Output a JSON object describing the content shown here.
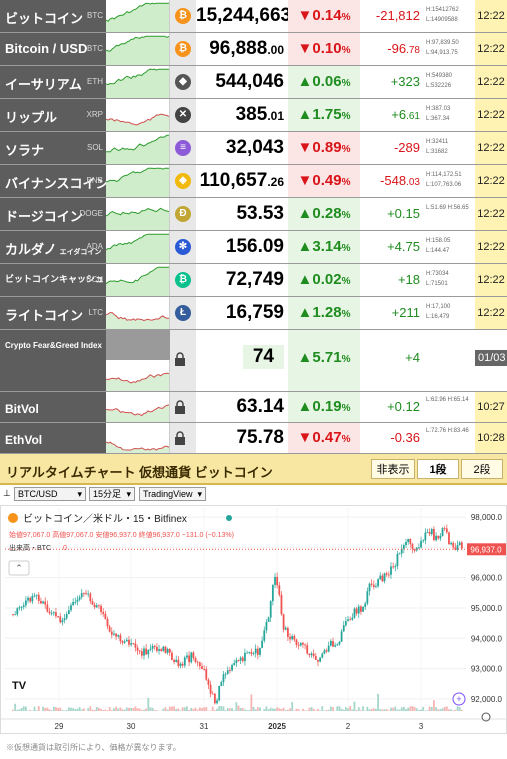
{
  "rows": [
    {
      "name": "ビットコイン",
      "ticker": "BTC",
      "icon": "bitcoin-icon",
      "icon_char": "₿",
      "icon_color": "#f7931a",
      "price": "15,244,663",
      "price_dec": "",
      "dir": "down",
      "pct": "0.14",
      "pct_unit": "%",
      "chg": "-21,812",
      "chg_dec": "",
      "hl": [
        "H:15412762",
        "L:14909588"
      ],
      "time": "12:22",
      "spark": "up"
    },
    {
      "name": "Bitcoin / USD",
      "ticker": "BTC",
      "icon": "bitcoin-icon",
      "icon_char": "₿",
      "icon_color": "#f7931a",
      "price": "96,888",
      "price_dec": ".00",
      "dir": "down",
      "pct": "0.10",
      "pct_unit": "%",
      "chg": "-96",
      "chg_dec": ".78",
      "hl": [
        "H:97,839.50",
        "L:94,913.75"
      ],
      "time": "12:22",
      "spark": "up"
    },
    {
      "name": "イーサリアム",
      "ticker": "ETH",
      "icon": "ethereum-icon",
      "icon_char": "◆",
      "icon_color": "#555555",
      "price": "544,046",
      "price_dec": "",
      "dir": "up",
      "pct": "0.06",
      "pct_unit": "%",
      "chg": "+323",
      "chg_dec": "",
      "hl": [
        "H:549380",
        "L:532226"
      ],
      "time": "12:22",
      "spark": "up"
    },
    {
      "name": "リップル",
      "ticker": "XRP",
      "icon": "xrp-icon",
      "icon_char": "✕",
      "icon_color": "#444444",
      "price": "385",
      "price_dec": ".01",
      "dir": "up",
      "pct": "1.75",
      "pct_unit": "%",
      "chg": "+6",
      "chg_dec": ".61",
      "hl": [
        "H:387.03",
        "L:367.34"
      ],
      "time": "12:22",
      "spark": "mix"
    },
    {
      "name": "ソラナ",
      "ticker": "SOL",
      "icon": "solana-icon",
      "icon_char": "≡",
      "icon_color": "#8e5bd8",
      "price": "32,043",
      "price_dec": "",
      "dir": "down",
      "pct": "0.89",
      "pct_unit": "%",
      "chg": "-289",
      "chg_dec": "",
      "hl": [
        "H:32411",
        "L:31682"
      ],
      "time": "12:22",
      "spark": "up"
    },
    {
      "name": "バイナンスコイン",
      "ticker": "BNB",
      "icon": "bnb-icon",
      "icon_char": "◈",
      "icon_color": "#f0b90b",
      "price": "110,657",
      "price_dec": ".26",
      "dir": "down",
      "pct": "0.49",
      "pct_unit": "%",
      "chg": "-548",
      "chg_dec": ".03",
      "hl": [
        "H:114,172.51",
        "L:107,763.06"
      ],
      "time": "12:22",
      "spark": "up"
    },
    {
      "name": "ドージコイン",
      "ticker": "DOGE",
      "icon": "dogecoin-icon",
      "icon_char": "Ð",
      "icon_color": "#c2a633",
      "price": "53.53",
      "price_dec": "",
      "dir": "up",
      "pct": "0.28",
      "pct_unit": "%",
      "chg": "+0.15",
      "chg_dec": "",
      "hl": [
        "L:51.69 H:56.65",
        ""
      ],
      "time": "12:22",
      "spark": "up"
    },
    {
      "name": "カルダノ",
      "name_sub": "エイダコイン",
      "ticker": "ADA",
      "icon": "cardano-icon",
      "icon_char": "✻",
      "icon_color": "#2a5ad6",
      "price": "156.09",
      "price_dec": "",
      "dir": "up",
      "pct": "3.14",
      "pct_unit": "%",
      "chg": "+4.75",
      "chg_dec": "",
      "hl": [
        "H:158.05",
        "L:144.47"
      ],
      "time": "12:22",
      "spark": "up"
    },
    {
      "name": "ビットコインキャッシュ",
      "ticker": "BCH",
      "icon": "bitcoin-cash-icon",
      "icon_char": "₿",
      "icon_color": "#0ac18e",
      "price": "72,749",
      "price_dec": "",
      "dir": "up",
      "pct": "0.02",
      "pct_unit": "%",
      "chg": "+18",
      "chg_dec": "",
      "hl": [
        "H:73034",
        "L:71501"
      ],
      "time": "12:22",
      "spark": "up"
    },
    {
      "name": "ライトコイン",
      "ticker": "LTC",
      "icon": "litecoin-icon",
      "icon_char": "Ł",
      "icon_color": "#345d9d",
      "price": "16,759",
      "price_dec": "",
      "dir": "up",
      "pct": "1.28",
      "pct_unit": "%",
      "chg": "+211",
      "chg_dec": "",
      "hl": [
        "H:17,100",
        "L:16,479"
      ],
      "time": "12:22",
      "spark": "mix"
    }
  ],
  "fear_greed": {
    "name": "Crypto Fear&Greed Index",
    "value": "74",
    "dir": "up",
    "pct": "5.71",
    "pct_unit": "%",
    "chg": "+4",
    "date": "01/03"
  },
  "vols": [
    {
      "name": "BitVol",
      "value": "63.14",
      "dir": "up",
      "pct": "0.19",
      "pct_unit": "%",
      "chg": "+0.12",
      "hl": "L:62.96 H:65.14",
      "time": "10:27"
    },
    {
      "name": "EthVol",
      "value": "75.78",
      "dir": "down",
      "pct": "0.47",
      "pct_unit": "%",
      "chg": "-0.36",
      "hl": "L:72.76 H:83.46",
      "time": "10:28"
    }
  ],
  "panel": {
    "title": "リアルタイムチャート 仮想通貨 ビットコイン",
    "tabs": [
      "非表示",
      "1段",
      "2段"
    ],
    "active_tab": "1段",
    "pair_select": "BTC/USD",
    "interval_select": "15分足",
    "provider_select": "TradingView",
    "note": "※仮想通貨は取引所により、価格が異なります。"
  },
  "chart_data": {
    "type": "candlestick",
    "title": "ビットコイン／米ドル・15・Bitfinex",
    "ohlc_label": "始値97,067.0 高値97,067.0 安値96,937.0 終値96,937.0 −131.0 (−0.13%)",
    "volume_label": "出来高・BTC",
    "volume_value": "0",
    "last_price": "96,937.0",
    "ylim": [
      91600,
      98300
    ],
    "y_ticks": [
      "98,000.0",
      "97,000.0",
      "96,000.0",
      "95,000.0",
      "94,000.0",
      "93,000.0",
      "92,000.0"
    ],
    "x_ticks": [
      "29",
      "30",
      "31",
      "2025",
      "2",
      "3"
    ],
    "path": [
      [
        0,
        94800
      ],
      [
        4,
        95200
      ],
      [
        8,
        95400
      ],
      [
        12,
        94900
      ],
      [
        16,
        94600
      ],
      [
        20,
        95300
      ],
      [
        24,
        95400
      ],
      [
        28,
        95000
      ],
      [
        31,
        94400
      ],
      [
        34,
        94000
      ],
      [
        38,
        93900
      ],
      [
        42,
        93500
      ],
      [
        46,
        93700
      ],
      [
        50,
        93600
      ],
      [
        54,
        93100
      ],
      [
        58,
        93400
      ],
      [
        62,
        93000
      ],
      [
        64,
        92200
      ],
      [
        66,
        91900
      ],
      [
        68,
        92700
      ],
      [
        70,
        93000
      ],
      [
        73,
        93300
      ],
      [
        76,
        93400
      ],
      [
        80,
        93600
      ],
      [
        83,
        94700
      ],
      [
        85,
        96100
      ],
      [
        86,
        95800
      ],
      [
        88,
        94300
      ],
      [
        90,
        94100
      ],
      [
        93,
        93800
      ],
      [
        96,
        93600
      ],
      [
        100,
        93300
      ],
      [
        103,
        93800
      ],
      [
        106,
        93900
      ],
      [
        108,
        94400
      ],
      [
        111,
        94900
      ],
      [
        114,
        95000
      ],
      [
        116,
        95700
      ],
      [
        120,
        96000
      ],
      [
        124,
        96400
      ],
      [
        126,
        96900
      ],
      [
        128,
        97300
      ],
      [
        130,
        96800
      ],
      [
        132,
        96900
      ],
      [
        134,
        97400
      ],
      [
        136,
        97500
      ],
      [
        138,
        97200
      ],
      [
        140,
        97800
      ],
      [
        142,
        97100
      ],
      [
        144,
        97000
      ],
      [
        146,
        97100
      ]
    ],
    "grid": true
  }
}
